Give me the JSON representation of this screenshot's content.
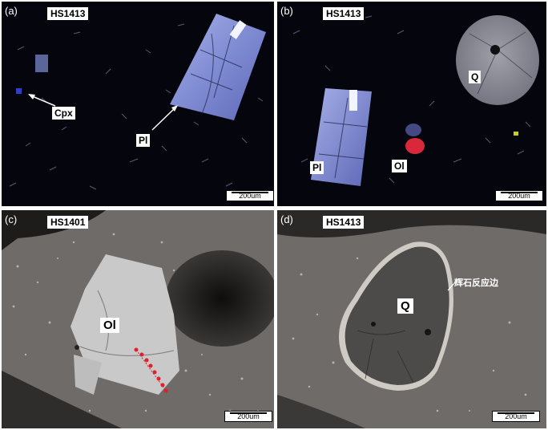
{
  "panels": [
    {
      "id": "a",
      "tag": "(a)",
      "sample": "HS1413",
      "scale": "200um",
      "labels": {
        "cpx": "Cpx",
        "pl": "Pl"
      }
    },
    {
      "id": "b",
      "tag": "(b)",
      "sample": "HS1413",
      "scale": "200um",
      "labels": {
        "q": "Q",
        "pl": "Pl",
        "ol": "Ol"
      }
    },
    {
      "id": "c",
      "tag": "(c)",
      "sample": "HS1401",
      "scale": "200um",
      "labels": {
        "ol": "Ol"
      }
    },
    {
      "id": "d",
      "tag": "(d)",
      "sample": "HS1413",
      "scale": "200um",
      "labels": {
        "q": "Q",
        "rim": "辉石反应边"
      }
    }
  ],
  "colors": {
    "xpl_background": "#05060d",
    "plagioclase": "#8a96d8",
    "quartz_xpl": "#8d8d96",
    "olivine_xpl": "#d8283a",
    "bse_groundmass": "#6e6b68",
    "olivine_bse": "#c9c9c9",
    "quartz_bse": "#4d4b4a",
    "analysis_points": "#e0202a"
  }
}
